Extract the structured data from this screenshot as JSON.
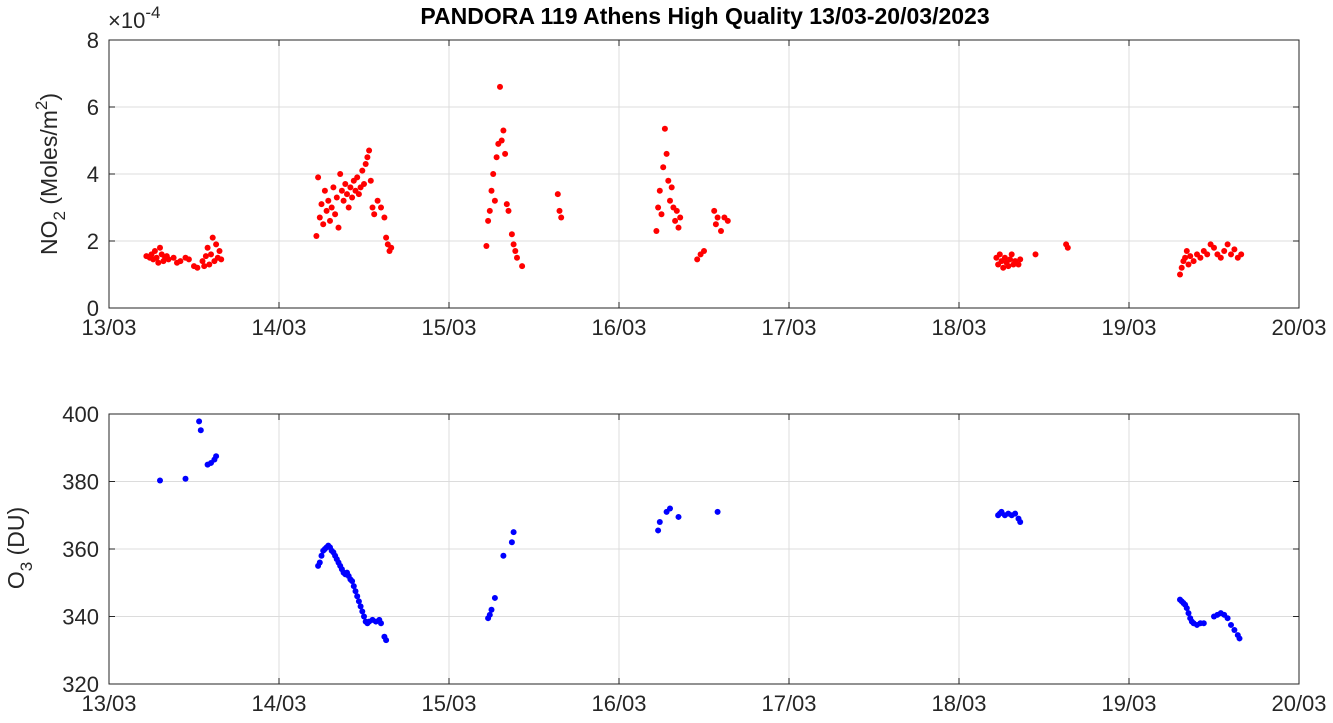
{
  "title": "PANDORA 119 Athens High Quality 13/03-20/03/2023",
  "chart_data": [
    {
      "type": "scatter",
      "name": "NO2",
      "ylabel_main": "NO",
      "ylabel_sub": "2",
      "ylabel_unit_pre": " (Moles/m",
      "ylabel_unit_sup": "2",
      "ylabel_unit_post": ")",
      "y_exponent_prefix": "×10",
      "y_exponent": "-4",
      "ylim": [
        0,
        8
      ],
      "yticks": [
        0,
        2,
        4,
        6,
        8
      ],
      "xlim": [
        13,
        20
      ],
      "xticks": [
        13,
        14,
        15,
        16,
        17,
        18,
        19,
        20
      ],
      "xtick_labels": [
        "13/03",
        "14/03",
        "15/03",
        "16/03",
        "17/03",
        "18/03",
        "19/03",
        "20/03"
      ],
      "grid": true,
      "color": "#ff0000",
      "points": [
        [
          13.22,
          1.55
        ],
        [
          13.24,
          1.5
        ],
        [
          13.25,
          1.6
        ],
        [
          13.26,
          1.45
        ],
        [
          13.27,
          1.7
        ],
        [
          13.28,
          1.5
        ],
        [
          13.29,
          1.35
        ],
        [
          13.3,
          1.8
        ],
        [
          13.31,
          1.6
        ],
        [
          13.32,
          1.4
        ],
        [
          13.33,
          1.5
        ],
        [
          13.34,
          1.55
        ],
        [
          13.35,
          1.45
        ],
        [
          13.38,
          1.5
        ],
        [
          13.4,
          1.35
        ],
        [
          13.42,
          1.4
        ],
        [
          13.45,
          1.5
        ],
        [
          13.47,
          1.45
        ],
        [
          13.5,
          1.25
        ],
        [
          13.52,
          1.2
        ],
        [
          13.55,
          1.4
        ],
        [
          13.56,
          1.25
        ],
        [
          13.57,
          1.55
        ],
        [
          13.58,
          1.8
        ],
        [
          13.59,
          1.3
        ],
        [
          13.6,
          1.6
        ],
        [
          13.61,
          2.1
        ],
        [
          13.62,
          1.4
        ],
        [
          13.63,
          1.9
        ],
        [
          13.64,
          1.5
        ],
        [
          13.65,
          1.7
        ],
        [
          13.66,
          1.45
        ],
        [
          14.22,
          2.15
        ],
        [
          14.23,
          3.9
        ],
        [
          14.24,
          2.7
        ],
        [
          14.25,
          3.1
        ],
        [
          14.26,
          2.5
        ],
        [
          14.27,
          3.5
        ],
        [
          14.28,
          2.9
        ],
        [
          14.29,
          3.2
        ],
        [
          14.3,
          2.6
        ],
        [
          14.31,
          3.0
        ],
        [
          14.32,
          3.6
        ],
        [
          14.33,
          2.8
        ],
        [
          14.34,
          3.3
        ],
        [
          14.35,
          2.4
        ],
        [
          14.36,
          4.0
        ],
        [
          14.37,
          3.5
        ],
        [
          14.38,
          3.2
        ],
        [
          14.39,
          3.7
        ],
        [
          14.4,
          3.4
        ],
        [
          14.41,
          3.0
        ],
        [
          14.42,
          3.6
        ],
        [
          14.43,
          3.3
        ],
        [
          14.44,
          3.8
        ],
        [
          14.45,
          3.5
        ],
        [
          14.46,
          3.9
        ],
        [
          14.47,
          3.4
        ],
        [
          14.48,
          3.6
        ],
        [
          14.49,
          4.1
        ],
        [
          14.5,
          3.7
        ],
        [
          14.51,
          4.3
        ],
        [
          14.52,
          4.5
        ],
        [
          14.53,
          4.7
        ],
        [
          14.54,
          3.8
        ],
        [
          14.55,
          3.0
        ],
        [
          14.56,
          2.8
        ],
        [
          14.58,
          3.2
        ],
        [
          14.6,
          3.0
        ],
        [
          14.62,
          2.7
        ],
        [
          14.63,
          2.1
        ],
        [
          14.64,
          1.9
        ],
        [
          14.65,
          1.7
        ],
        [
          14.66,
          1.8
        ],
        [
          15.22,
          1.85
        ],
        [
          15.23,
          2.6
        ],
        [
          15.24,
          2.9
        ],
        [
          15.25,
          3.5
        ],
        [
          15.26,
          4.0
        ],
        [
          15.27,
          3.2
        ],
        [
          15.28,
          4.5
        ],
        [
          15.29,
          4.9
        ],
        [
          15.3,
          6.6
        ],
        [
          15.31,
          5.0
        ],
        [
          15.32,
          5.3
        ],
        [
          15.33,
          4.6
        ],
        [
          15.34,
          3.1
        ],
        [
          15.35,
          2.9
        ],
        [
          15.37,
          2.2
        ],
        [
          15.38,
          1.9
        ],
        [
          15.39,
          1.7
        ],
        [
          15.4,
          1.5
        ],
        [
          15.43,
          1.25
        ],
        [
          15.64,
          3.4
        ],
        [
          15.65,
          2.9
        ],
        [
          15.66,
          2.7
        ],
        [
          16.22,
          2.3
        ],
        [
          16.23,
          3.0
        ],
        [
          16.24,
          3.5
        ],
        [
          16.25,
          2.8
        ],
        [
          16.26,
          4.2
        ],
        [
          16.27,
          5.35
        ],
        [
          16.28,
          4.6
        ],
        [
          16.29,
          3.8
        ],
        [
          16.3,
          3.2
        ],
        [
          16.31,
          3.6
        ],
        [
          16.32,
          3.0
        ],
        [
          16.33,
          2.6
        ],
        [
          16.34,
          2.9
        ],
        [
          16.35,
          2.4
        ],
        [
          16.36,
          2.7
        ],
        [
          16.46,
          1.45
        ],
        [
          16.48,
          1.6
        ],
        [
          16.5,
          1.7
        ],
        [
          16.56,
          2.9
        ],
        [
          16.57,
          2.5
        ],
        [
          16.58,
          2.7
        ],
        [
          16.6,
          2.3
        ],
        [
          16.62,
          2.7
        ],
        [
          16.64,
          2.6
        ],
        [
          18.22,
          1.5
        ],
        [
          18.23,
          1.3
        ],
        [
          18.24,
          1.6
        ],
        [
          18.25,
          1.4
        ],
        [
          18.26,
          1.2
        ],
        [
          18.27,
          1.5
        ],
        [
          18.28,
          1.35
        ],
        [
          18.29,
          1.25
        ],
        [
          18.3,
          1.45
        ],
        [
          18.31,
          1.6
        ],
        [
          18.32,
          1.3
        ],
        [
          18.33,
          1.4
        ],
        [
          18.35,
          1.3
        ],
        [
          18.36,
          1.45
        ],
        [
          18.45,
          1.6
        ],
        [
          18.63,
          1.9
        ],
        [
          18.64,
          1.8
        ],
        [
          19.3,
          1.0
        ],
        [
          19.31,
          1.2
        ],
        [
          19.32,
          1.4
        ],
        [
          19.33,
          1.5
        ],
        [
          19.34,
          1.7
        ],
        [
          19.35,
          1.3
        ],
        [
          19.36,
          1.55
        ],
        [
          19.38,
          1.4
        ],
        [
          19.4,
          1.6
        ],
        [
          19.42,
          1.5
        ],
        [
          19.44,
          1.7
        ],
        [
          19.46,
          1.6
        ],
        [
          19.48,
          1.9
        ],
        [
          19.5,
          1.8
        ],
        [
          19.52,
          1.6
        ],
        [
          19.54,
          1.5
        ],
        [
          19.56,
          1.7
        ],
        [
          19.58,
          1.9
        ],
        [
          19.6,
          1.6
        ],
        [
          19.62,
          1.75
        ],
        [
          19.64,
          1.5
        ],
        [
          19.66,
          1.6
        ]
      ]
    },
    {
      "type": "scatter",
      "name": "O3",
      "ylabel_main": "O",
      "ylabel_sub": "3",
      "ylabel_unit_pre": " (DU)",
      "ylim": [
        320,
        400
      ],
      "yticks": [
        320,
        340,
        360,
        380,
        400
      ],
      "xlim": [
        13,
        20
      ],
      "xticks": [
        13,
        14,
        15,
        16,
        17,
        18,
        19,
        20
      ],
      "xtick_labels": [
        "13/03",
        "14/03",
        "15/03",
        "16/03",
        "17/03",
        "18/03",
        "19/03",
        "20/03"
      ],
      "grid": true,
      "color": "#0000ff",
      "points": [
        [
          13.3,
          380.3
        ],
        [
          13.45,
          380.8
        ],
        [
          13.53,
          397.8
        ],
        [
          13.54,
          395.2
        ],
        [
          13.58,
          385.0
        ],
        [
          13.6,
          385.5
        ],
        [
          13.62,
          386.5
        ],
        [
          13.63,
          387.5
        ],
        [
          14.23,
          355.0
        ],
        [
          14.24,
          356.0
        ],
        [
          14.25,
          358.0
        ],
        [
          14.26,
          359.5
        ],
        [
          14.27,
          360.0
        ],
        [
          14.28,
          360.5
        ],
        [
          14.29,
          361.0
        ],
        [
          14.3,
          360.5
        ],
        [
          14.31,
          359.5
        ],
        [
          14.32,
          359.0
        ],
        [
          14.33,
          358.0
        ],
        [
          14.34,
          357.0
        ],
        [
          14.35,
          356.0
        ],
        [
          14.36,
          355.0
        ],
        [
          14.37,
          354.0
        ],
        [
          14.38,
          353.0
        ],
        [
          14.39,
          352.5
        ],
        [
          14.4,
          353.0
        ],
        [
          14.41,
          352.0
        ],
        [
          14.42,
          351.0
        ],
        [
          14.43,
          350.5
        ],
        [
          14.44,
          349.0
        ],
        [
          14.45,
          347.5
        ],
        [
          14.46,
          346.0
        ],
        [
          14.47,
          344.5
        ],
        [
          14.48,
          343.0
        ],
        [
          14.49,
          341.5
        ],
        [
          14.5,
          340.0
        ],
        [
          14.51,
          338.5
        ],
        [
          14.52,
          338.0
        ],
        [
          14.53,
          338.5
        ],
        [
          14.55,
          339.0
        ],
        [
          14.57,
          338.5
        ],
        [
          14.59,
          339.0
        ],
        [
          14.6,
          338.0
        ],
        [
          14.62,
          334.0
        ],
        [
          14.63,
          333.0
        ],
        [
          15.23,
          339.5
        ],
        [
          15.24,
          340.5
        ],
        [
          15.25,
          342.0
        ],
        [
          15.27,
          345.5
        ],
        [
          15.32,
          358.0
        ],
        [
          15.37,
          362.0
        ],
        [
          15.38,
          365.0
        ],
        [
          16.23,
          365.5
        ],
        [
          16.24,
          368.0
        ],
        [
          16.28,
          371.0
        ],
        [
          16.3,
          372.0
        ],
        [
          16.35,
          369.5
        ],
        [
          16.58,
          371.0
        ],
        [
          18.23,
          370.0
        ],
        [
          18.24,
          370.5
        ],
        [
          18.25,
          371.0
        ],
        [
          18.27,
          370.0
        ],
        [
          18.29,
          370.5
        ],
        [
          18.31,
          370.0
        ],
        [
          18.33,
          370.5
        ],
        [
          18.35,
          369.0
        ],
        [
          18.36,
          368.0
        ],
        [
          19.3,
          345.0
        ],
        [
          19.31,
          344.5
        ],
        [
          19.32,
          344.0
        ],
        [
          19.33,
          343.5
        ],
        [
          19.34,
          342.5
        ],
        [
          19.35,
          341.0
        ],
        [
          19.36,
          339.5
        ],
        [
          19.37,
          338.5
        ],
        [
          19.38,
          338.0
        ],
        [
          19.4,
          337.5
        ],
        [
          19.42,
          338.0
        ],
        [
          19.44,
          338.0
        ],
        [
          19.5,
          340.0
        ],
        [
          19.52,
          340.5
        ],
        [
          19.54,
          341.0
        ],
        [
          19.56,
          340.5
        ],
        [
          19.58,
          339.5
        ],
        [
          19.6,
          337.5
        ],
        [
          19.62,
          336.0
        ],
        [
          19.64,
          334.5
        ],
        [
          19.65,
          333.5
        ]
      ]
    }
  ]
}
